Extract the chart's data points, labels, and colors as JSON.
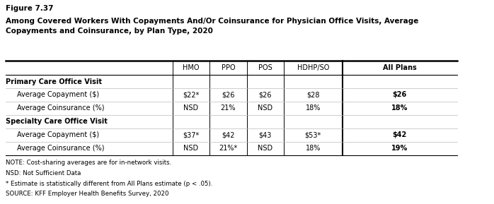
{
  "figure_label": "Figure 7.37",
  "title": "Among Covered Workers With Copayments And/Or Coinsurance for Physician Office Visits, Average\nCopayments and Coinsurance, by Plan Type, 2020",
  "columns": [
    "HMO",
    "PPO",
    "POS",
    "HDHP/SO",
    "All Plans"
  ],
  "rows": [
    {
      "label": "Primary Care Office Visit",
      "bold": true,
      "indent": false,
      "values": [
        "",
        "",
        "",
        "",
        ""
      ]
    },
    {
      "label": "Average Copayment ($)",
      "bold": false,
      "indent": true,
      "values": [
        "$22*",
        "$26",
        "$26",
        "$28",
        "$26"
      ]
    },
    {
      "label": "Average Coinsurance (%)",
      "bold": false,
      "indent": true,
      "values": [
        "NSD",
        "21%",
        "NSD",
        "18%",
        "18%"
      ]
    },
    {
      "label": "Specialty Care Office Visit",
      "bold": true,
      "indent": false,
      "values": [
        "",
        "",
        "",
        "",
        ""
      ]
    },
    {
      "label": "Average Copayment ($)",
      "bold": false,
      "indent": true,
      "values": [
        "$37*",
        "$42",
        "$43",
        "$53*",
        "$42"
      ]
    },
    {
      "label": "Average Coinsurance (%)",
      "bold": false,
      "indent": true,
      "values": [
        "NSD",
        "21%*",
        "NSD",
        "18%",
        "19%"
      ]
    }
  ],
  "note1": "NOTE: Cost-sharing averages are for in-network visits.",
  "note2": "NSD: Not Sufficient Data",
  "note3": "* Estimate is statistically different from All Plans estimate (p < .05).",
  "note4": "SOURCE: KFF Employer Health Benefits Survey, 2020",
  "bg_color": "#ffffff"
}
